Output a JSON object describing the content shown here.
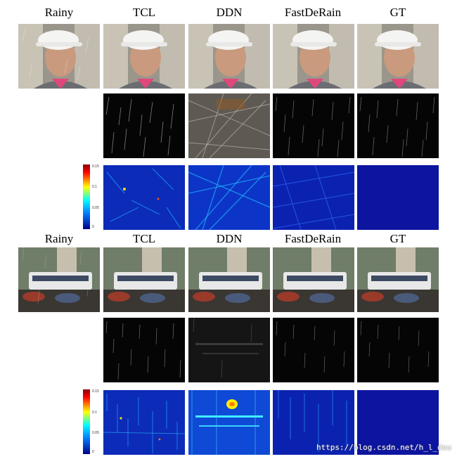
{
  "figure": {
    "headers": [
      "Rainy",
      "TCL",
      "DDN",
      "FastDeRain",
      "GT"
    ],
    "colorbar": {
      "ticks": [
        "0.15",
        "0.1",
        "0.05",
        "0"
      ]
    },
    "panels": [
      {
        "scene": "face"
      },
      {
        "scene": "street"
      }
    ]
  },
  "watermark": "https://blog.csdn.net/h_l_dou"
}
